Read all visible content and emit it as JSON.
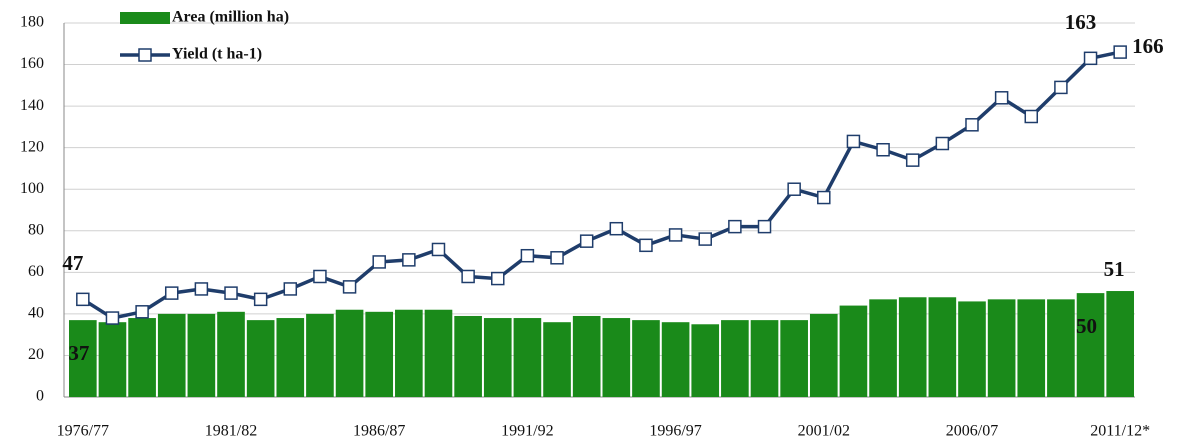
{
  "chart_data": {
    "type": "combo",
    "categories": [
      "1976/77",
      null,
      null,
      null,
      null,
      "1981/82",
      null,
      null,
      null,
      null,
      "1986/87",
      null,
      null,
      null,
      null,
      "1991/92",
      null,
      null,
      null,
      null,
      "1996/97",
      null,
      null,
      null,
      null,
      "2001/02",
      null,
      null,
      null,
      null,
      "2006/07",
      null,
      null,
      null,
      null,
      "2011/12*"
    ],
    "series": [
      {
        "name": "Area (million ha)",
        "type": "bar",
        "color": "#1a8a1a",
        "values": [
          37,
          36,
          38,
          40,
          40,
          41,
          37,
          38,
          40,
          42,
          41,
          42,
          42,
          39,
          38,
          38,
          36,
          39,
          38,
          37,
          36,
          35,
          37,
          37,
          37,
          40,
          44,
          47,
          48,
          48,
          46,
          47,
          47,
          47,
          50,
          51
        ],
        "value_labels": [
          "37",
          null,
          null,
          null,
          null,
          null,
          null,
          null,
          null,
          null,
          null,
          null,
          null,
          null,
          null,
          null,
          null,
          null,
          null,
          null,
          null,
          null,
          null,
          null,
          null,
          null,
          null,
          null,
          null,
          null,
          null,
          null,
          null,
          null,
          "50",
          "51"
        ]
      },
      {
        "name": "Yield (t ha-1)",
        "type": "line",
        "color": "#1f3d6b",
        "values": [
          47,
          38,
          41,
          50,
          52,
          50,
          47,
          52,
          58,
          53,
          65,
          66,
          71,
          58,
          57,
          68,
          67,
          75,
          81,
          73,
          78,
          76,
          82,
          82,
          100,
          96,
          123,
          119,
          114,
          122,
          131,
          144,
          135,
          149,
          163,
          166
        ],
        "value_labels": [
          "47",
          null,
          null,
          null,
          null,
          null,
          null,
          null,
          null,
          null,
          null,
          null,
          null,
          null,
          null,
          null,
          null,
          null,
          null,
          null,
          null,
          null,
          null,
          null,
          null,
          null,
          null,
          null,
          null,
          null,
          null,
          null,
          null,
          null,
          "163",
          "166"
        ]
      }
    ],
    "ylim": [
      0,
      180
    ],
    "yticks": [
      0,
      20,
      40,
      60,
      80,
      100,
      120,
      140,
      160,
      180
    ],
    "grid": true,
    "legend": "upper left"
  }
}
